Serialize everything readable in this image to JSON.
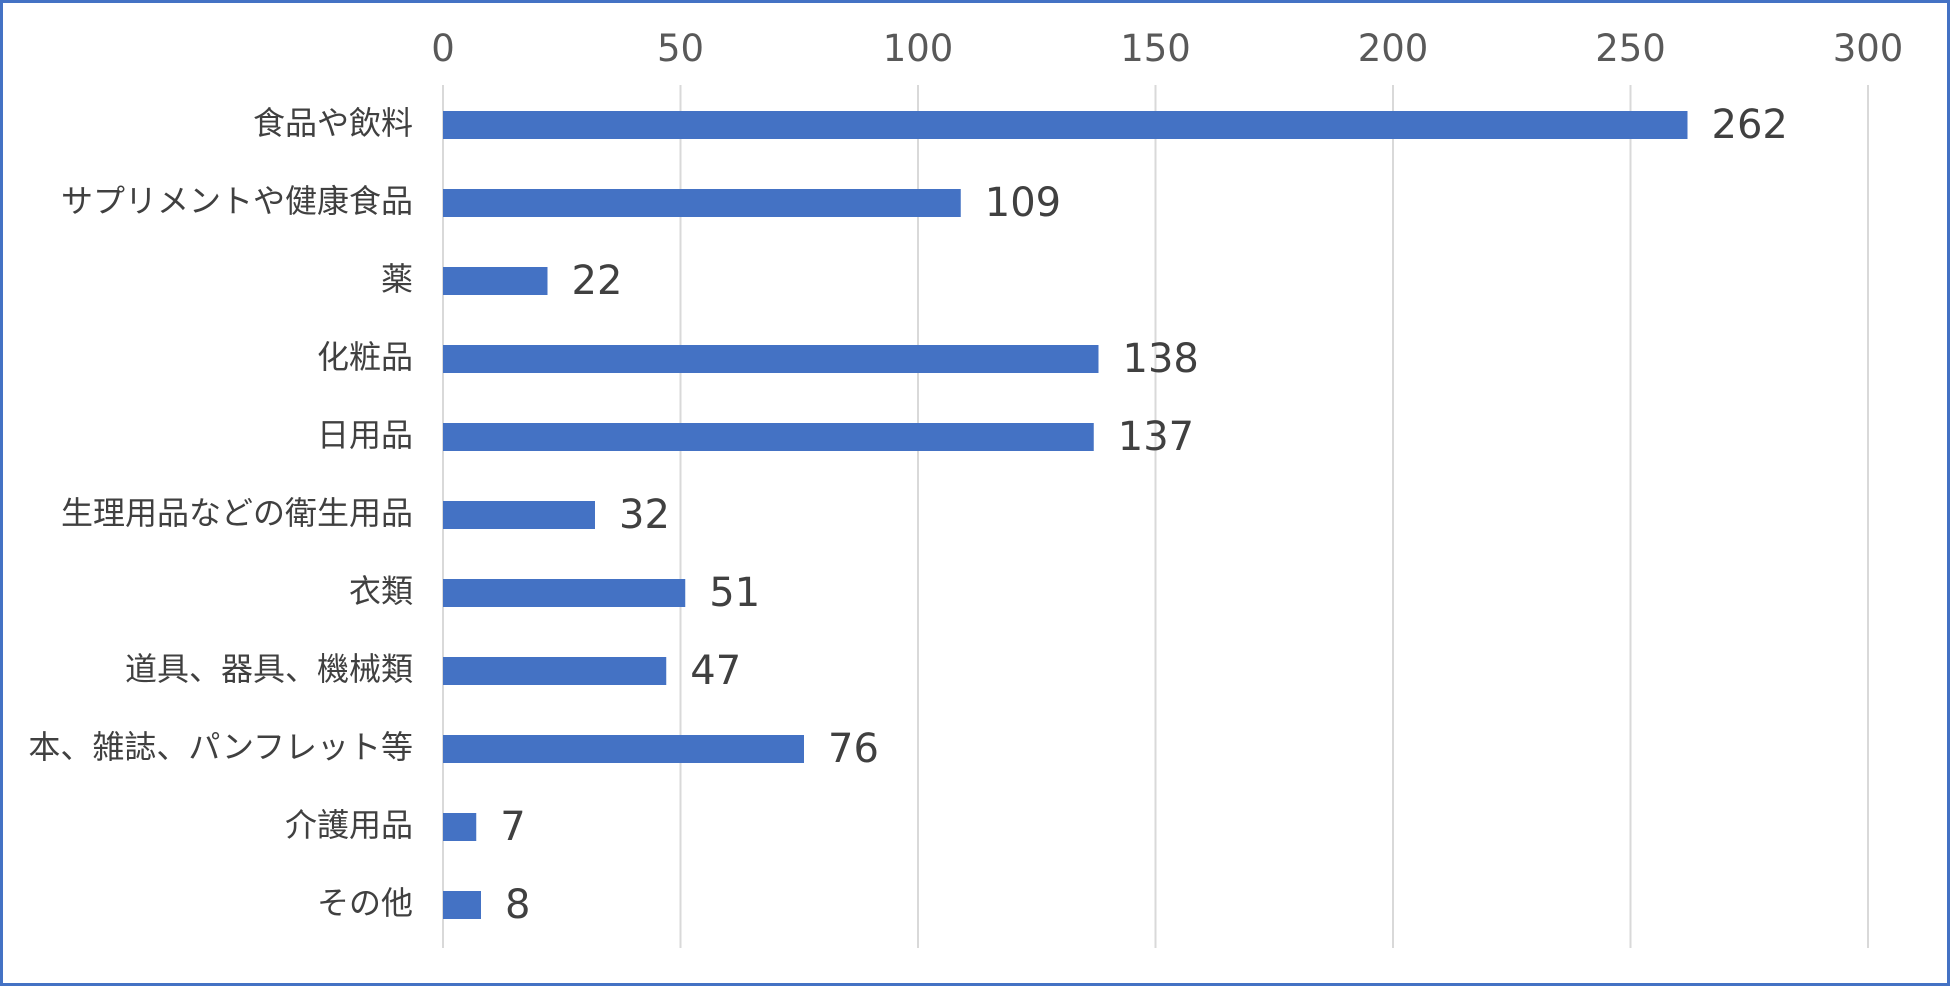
{
  "chart_data": {
    "type": "bar",
    "orientation": "horizontal",
    "categories": [
      "食品や飲料",
      "サプリメントや健康食品",
      "薬",
      "化粧品",
      "日用品",
      "生理用品などの衛生用品",
      "衣類",
      "道具、器具、機械類",
      "本、雑誌、パンフレット等",
      "介護用品",
      "その他"
    ],
    "values": [
      262,
      109,
      22,
      138,
      137,
      32,
      51,
      47,
      76,
      7,
      8
    ],
    "title": "",
    "xlabel": "",
    "ylabel": "",
    "xlim": [
      0,
      300
    ],
    "xticks": [
      0,
      50,
      100,
      150,
      200,
      250,
      300
    ],
    "axis_position": "top",
    "grid": true,
    "legend": "none",
    "data_labels": true,
    "colors": {
      "bar": "#4472c4",
      "grid": "#d9d9d9",
      "border": "#4472c4",
      "text": "#404040"
    }
  }
}
